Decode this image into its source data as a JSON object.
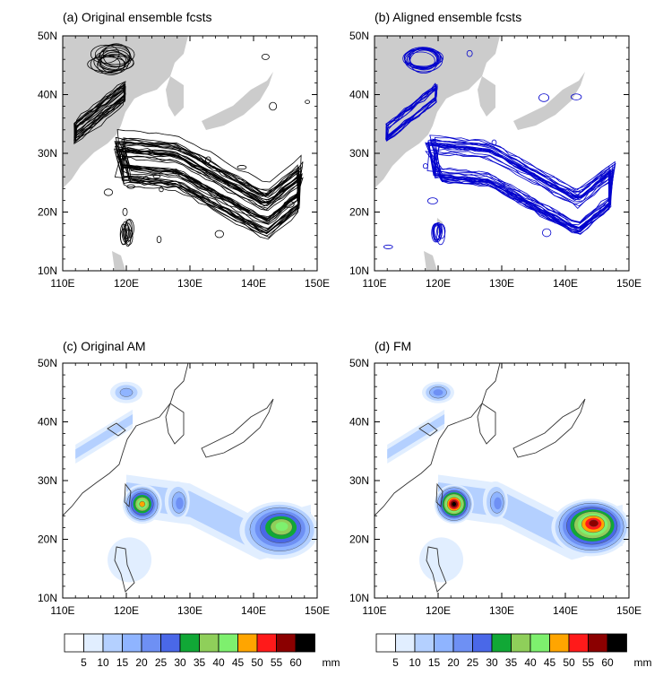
{
  "chart_data": [
    {
      "type": "contour",
      "title": "(a) Original ensemble fcsts",
      "line_color": "#000000",
      "x_ticks": [
        "110E",
        "120E",
        "130E",
        "140E",
        "150E"
      ],
      "y_ticks": [
        "10N",
        "20N",
        "30N",
        "40N",
        "50N"
      ],
      "xlim": [
        110,
        150
      ],
      "ylim": [
        10,
        50
      ],
      "features": [
        {
          "name": "north-cluster",
          "lon": 117.5,
          "lat": 46.5,
          "spread": 2.2
        },
        {
          "name": "bohai-band",
          "lon": [
            112,
            121
          ],
          "lat": [
            33,
            41
          ],
          "spread": 2.0
        },
        {
          "name": "s-shaped-band",
          "lon": [
            118,
            150
          ],
          "lat": [
            17,
            31
          ],
          "spread": 3.0
        },
        {
          "name": "taiwan-cluster",
          "lon": 120,
          "lat": 16.5,
          "spread": 1.5
        }
      ]
    },
    {
      "type": "contour",
      "title": "(b) Aligned ensemble fcsts",
      "line_color": "#0000cc",
      "x_ticks": [
        "110E",
        "120E",
        "130E",
        "140E",
        "150E"
      ],
      "y_ticks": [
        "10N",
        "20N",
        "30N",
        "40N",
        "50N"
      ],
      "xlim": [
        110,
        150
      ],
      "ylim": [
        10,
        50
      ],
      "features": [
        {
          "name": "north-cluster",
          "lon": 118,
          "lat": 45.5,
          "spread": 1.6
        },
        {
          "name": "bohai-band",
          "lon": [
            112,
            120
          ],
          "lat": [
            33,
            41
          ],
          "spread": 1.5
        },
        {
          "name": "s-shaped-band",
          "lon": [
            120,
            148
          ],
          "lat": [
            19,
            30
          ],
          "spread": 1.8
        },
        {
          "name": "taiwan-cluster",
          "lon": 120,
          "lat": 18,
          "spread": 1.0
        }
      ]
    },
    {
      "type": "heatmap",
      "title": "(c) Original AM",
      "x_ticks": [
        "110E",
        "120E",
        "130E",
        "140E",
        "150E"
      ],
      "y_ticks": [
        "10N",
        "20N",
        "30N",
        "40N",
        "50N"
      ],
      "xlim": [
        110,
        150
      ],
      "ylim": [
        10,
        50
      ],
      "features": [
        {
          "name": "taiwan-max",
          "lon": 122.5,
          "lat": 26,
          "peak_mm": 45
        },
        {
          "name": "east-max",
          "lon": 144,
          "lat": 21.5,
          "peak_mm": 40
        },
        {
          "name": "band-fragment",
          "lon": 128,
          "lat": 26.5,
          "peak_mm": 20
        },
        {
          "name": "north-blob",
          "lon": 120,
          "lat": 45,
          "peak_mm": 15
        }
      ]
    },
    {
      "type": "heatmap",
      "title": "(d) FM",
      "x_ticks": [
        "110E",
        "120E",
        "130E",
        "140E",
        "150E"
      ],
      "y_ticks": [
        "10N",
        "20N",
        "30N",
        "40N",
        "50N"
      ],
      "xlim": [
        110,
        150
      ],
      "ylim": [
        10,
        50
      ],
      "features": [
        {
          "name": "taiwan-max",
          "lon": 122.5,
          "lat": 26,
          "peak_mm": 60
        },
        {
          "name": "east-max",
          "lon": 144,
          "lat": 22,
          "peak_mm": 55
        },
        {
          "name": "band-fragment",
          "lon": 129,
          "lat": 26.5,
          "peak_mm": 20
        },
        {
          "name": "north-blob",
          "lon": 120,
          "lat": 45,
          "peak_mm": 20
        }
      ]
    }
  ],
  "colorbar": {
    "levels": [
      "5",
      "10",
      "15",
      "20",
      "25",
      "30",
      "35",
      "40",
      "45",
      "50",
      "55",
      "60"
    ],
    "unit": "mm",
    "colors": [
      "#ffffff",
      "#e1eeff",
      "#b4d0ff",
      "#8fb4ff",
      "#6e90f4",
      "#4a68e8",
      "#11a836",
      "#8fcf5a",
      "#7ef06e",
      "#ffa500",
      "#ff1a1a",
      "#8b0000",
      "#000000"
    ]
  }
}
